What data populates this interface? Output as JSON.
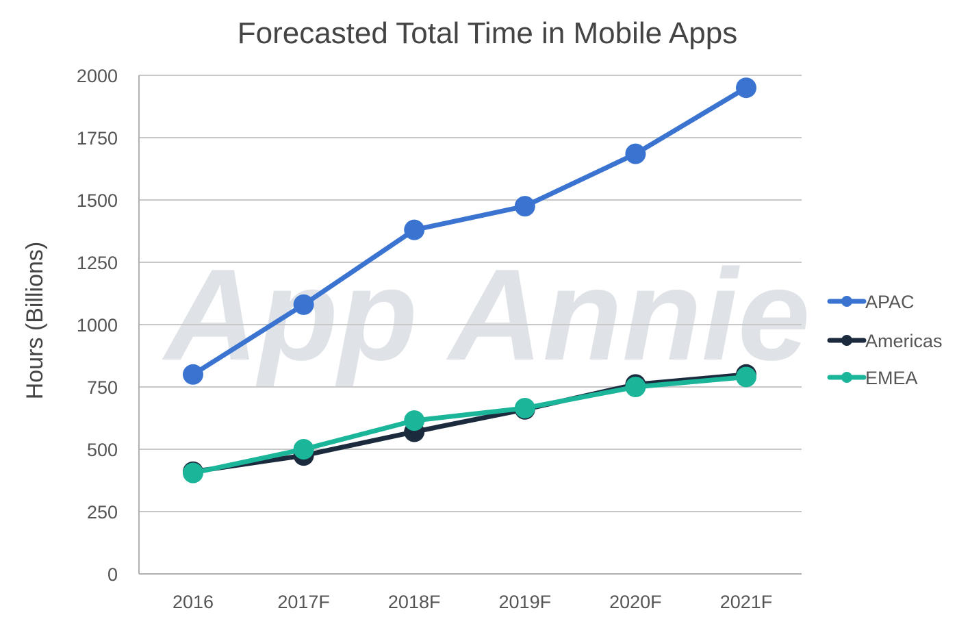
{
  "watermark": "App Annie",
  "colors": {
    "apac": "#3a74d0",
    "americas": "#1b2a3d",
    "emea": "#1bb59a",
    "grid": "#c8c8c8",
    "text": "#555555",
    "title": "#444444",
    "watermark": "#dfe3e8"
  },
  "chart_data": {
    "type": "line",
    "title": "Forecasted Total Time in Mobile Apps",
    "xlabel": "",
    "ylabel": "Hours (Billions)",
    "categories": [
      "2016",
      "2017F",
      "2018F",
      "2019F",
      "2020F",
      "2021F"
    ],
    "ylim": [
      0,
      2000
    ],
    "yticks": [
      0,
      250,
      500,
      750,
      1000,
      1250,
      1500,
      1750,
      2000
    ],
    "grid": true,
    "legend_position": "right",
    "series": [
      {
        "name": "APAC",
        "color": "#3a74d0",
        "values": [
          800,
          1080,
          1380,
          1475,
          1685,
          1950
        ]
      },
      {
        "name": "Americas",
        "color": "#1b2a3d",
        "values": [
          410,
          475,
          570,
          660,
          760,
          800
        ]
      },
      {
        "name": "EMEA",
        "color": "#1bb59a",
        "values": [
          405,
          500,
          615,
          665,
          750,
          790
        ]
      }
    ]
  }
}
